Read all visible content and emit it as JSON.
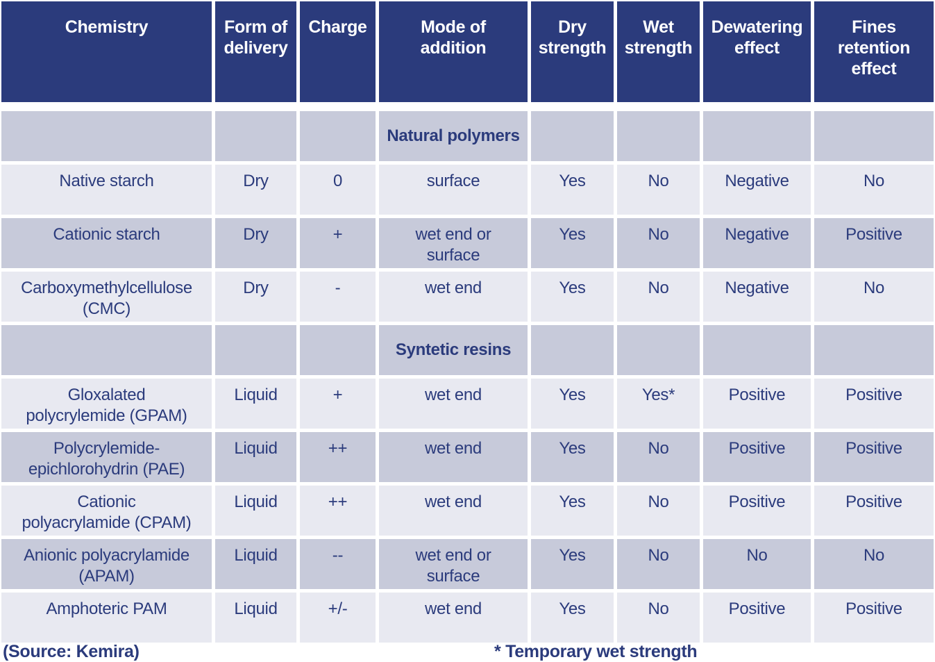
{
  "colors": {
    "header_bg": "#2B3B7C",
    "header_text": "#FFFFFF",
    "body_text": "#2B3B7C",
    "row_light": "#E8E9F1",
    "row_dark": "#C7CADA",
    "background": "#FFFFFF"
  },
  "chart_data": {
    "type": "table",
    "columns": [
      "Chemistry",
      "Form of\ndelivery",
      "Charge",
      "Mode of\naddition",
      "Dry\nstrength",
      "Wet\nstrength",
      "Dewatering\neffect",
      "Fines\nretention\neffect"
    ],
    "rows": [
      {
        "type": "section",
        "label": "Natural polymers"
      },
      {
        "type": "data",
        "shade": "light",
        "cells": [
          "Native starch",
          "Dry",
          "0",
          "surface",
          "Yes",
          "No",
          "Negative",
          "No"
        ]
      },
      {
        "type": "data",
        "shade": "dark",
        "cells": [
          "Cationic starch",
          "Dry",
          "+",
          "wet end or\nsurface",
          "Yes",
          "No",
          "Negative",
          "Positive"
        ]
      },
      {
        "type": "data",
        "shade": "light",
        "cells": [
          "Carboxymethylcellulose\n(CMC)",
          "Dry",
          "-",
          "wet end",
          "Yes",
          "No",
          "Negative",
          "No"
        ]
      },
      {
        "type": "section",
        "label": "Syntetic resins"
      },
      {
        "type": "data",
        "shade": "light",
        "cells": [
          "Gloxalated\npolycrylemide (GPAM)",
          "Liquid",
          "+",
          "wet end",
          "Yes",
          "Yes*",
          "Positive",
          "Positive"
        ]
      },
      {
        "type": "data",
        "shade": "dark",
        "cells": [
          "Polycrylemide-\nepichlorohydrin (PAE)",
          "Liquid",
          "++",
          "wet end",
          "Yes",
          "No",
          "Positive",
          "Positive"
        ]
      },
      {
        "type": "data",
        "shade": "light",
        "cells": [
          "Cationic\npolyacrylamide (CPAM)",
          "Liquid",
          "++",
          "wet end",
          "Yes",
          "No",
          "Positive",
          "Positive"
        ]
      },
      {
        "type": "data",
        "shade": "dark",
        "cells": [
          "Anionic polyacrylamide\n(APAM)",
          "Liquid",
          "--",
          "wet end or\nsurface",
          "Yes",
          "No",
          "No",
          "No"
        ]
      },
      {
        "type": "data",
        "shade": "light",
        "cells": [
          "Amphoteric PAM",
          "Liquid",
          "+/-",
          "wet end",
          "Yes",
          "No",
          "Positive",
          "Positive"
        ]
      }
    ]
  },
  "footer": {
    "source": "(Source: Kemira)",
    "note": "* Temporary wet strength"
  }
}
